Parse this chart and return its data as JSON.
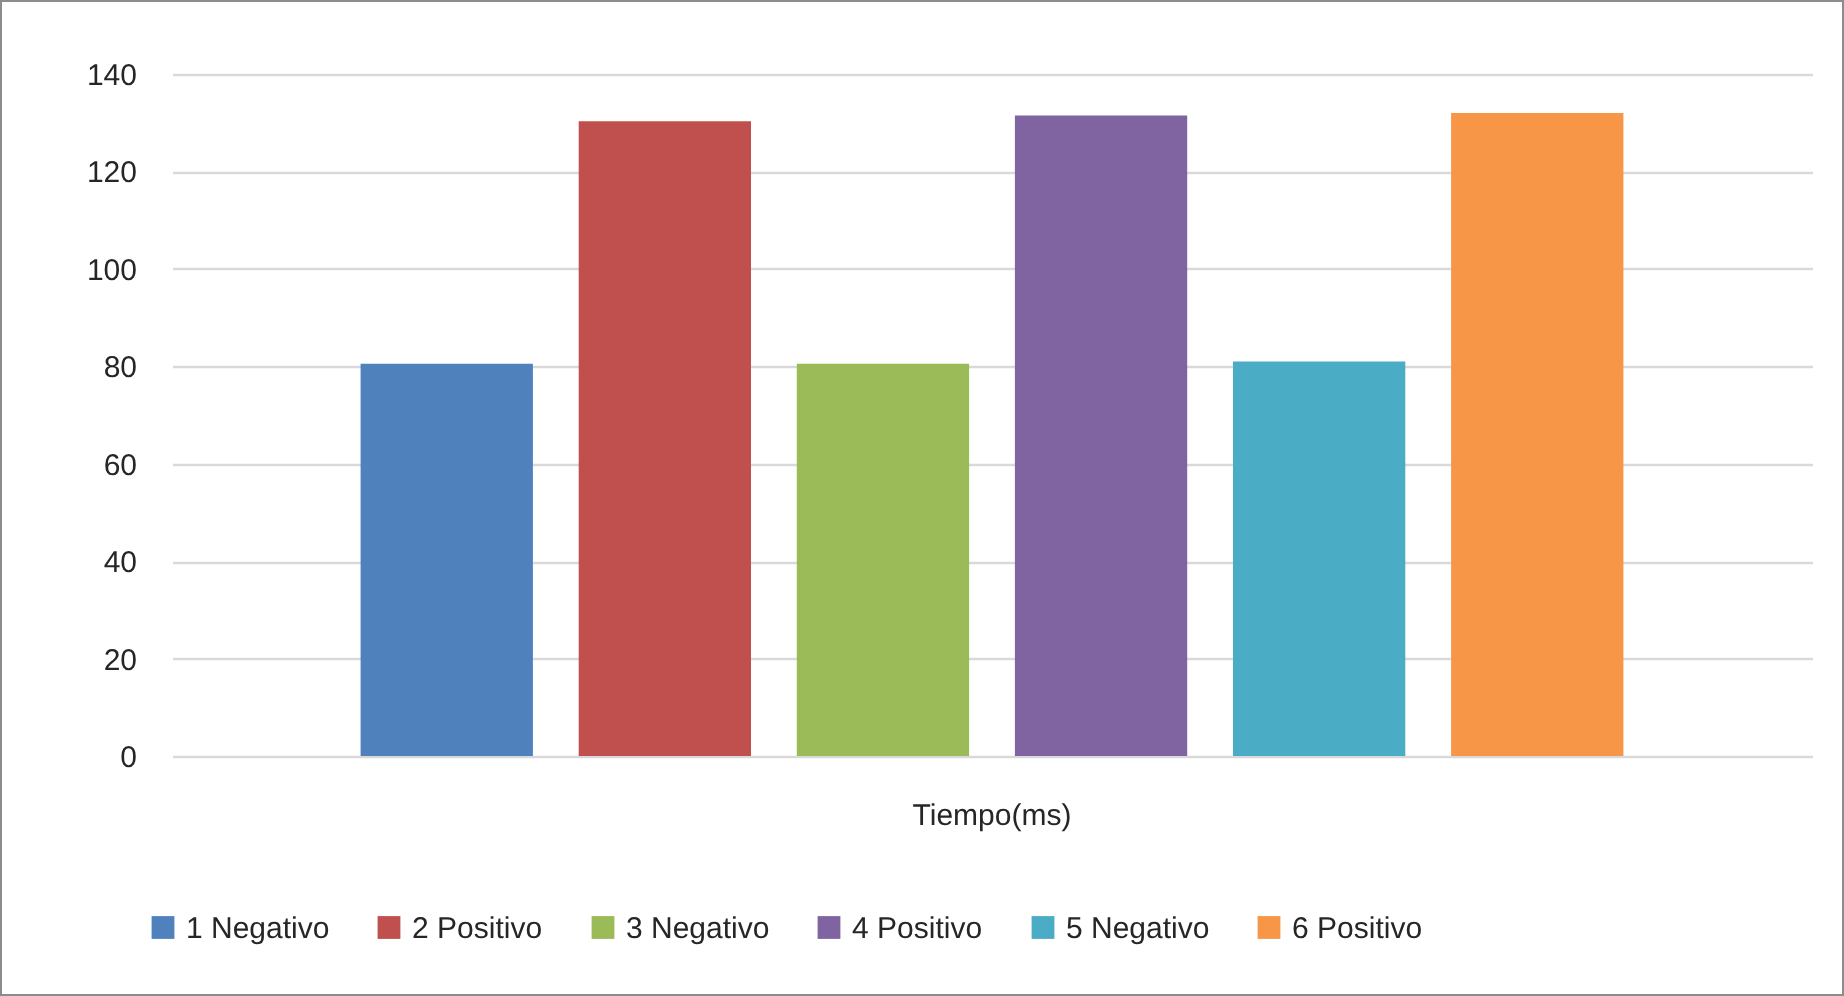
{
  "chart_data": {
    "type": "bar",
    "categories": [
      "Tiempo(ms)"
    ],
    "series": [
      {
        "name": "1 Negativo",
        "color": "#4f81bd",
        "values": [
          80.5
        ]
      },
      {
        "name": "2 Positivo",
        "color": "#c0504d",
        "values": [
          130.3
        ]
      },
      {
        "name": "3 Negativo",
        "color": "#9bbb59",
        "values": [
          80.5
        ]
      },
      {
        "name": "4 Positivo",
        "color": "#8064a2",
        "values": [
          131.5
        ]
      },
      {
        "name": "5 Negativo",
        "color": "#4bacc6",
        "values": [
          81
        ]
      },
      {
        "name": "6 Positivo",
        "color": "#f79646",
        "values": [
          132
        ]
      }
    ],
    "ylim": [
      0,
      140
    ],
    "yticks": [
      0,
      20,
      40,
      60,
      80,
      100,
      120,
      140
    ],
    "grid": "y",
    "legend": "bottom"
  }
}
